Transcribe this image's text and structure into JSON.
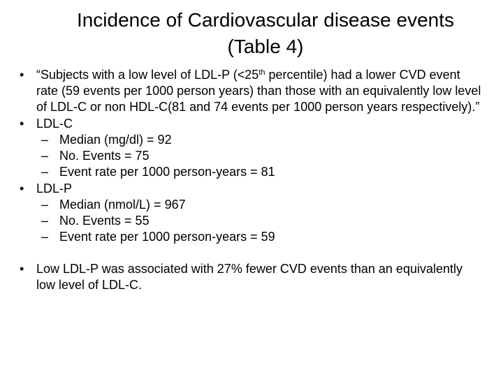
{
  "slide": {
    "title_line1": "Incidence of Cardiovascular disease events",
    "title_line2": "(Table 4)",
    "bullets": {
      "quote": {
        "part1": "“Subjects with a low level of LDL-P (<25",
        "sup": "th",
        "part2": " percentile) had a lower CVD event rate (59 events per 1000 person years) than those with an equivalently low level of LDL-C or non HDL-C(81 and 74 events per 1000 person years respectively).”"
      },
      "ldlc": {
        "label": "LDL-C",
        "items": [
          "Median (mg/dl) = 92",
          "No. Events = 75",
          "Event rate per 1000 person-years = 81"
        ]
      },
      "ldlp": {
        "label": "LDL-P",
        "items": [
          "Median (nmol/L) = 967",
          "No. Events = 55",
          "Event rate per 1000 person-years = 59"
        ]
      },
      "conclusion": "Low LDL-P was associated with 27% fewer CVD events than an equivalently low level of LDL-C."
    },
    "bullet_glyph": "•",
    "dash_glyph": "–"
  }
}
